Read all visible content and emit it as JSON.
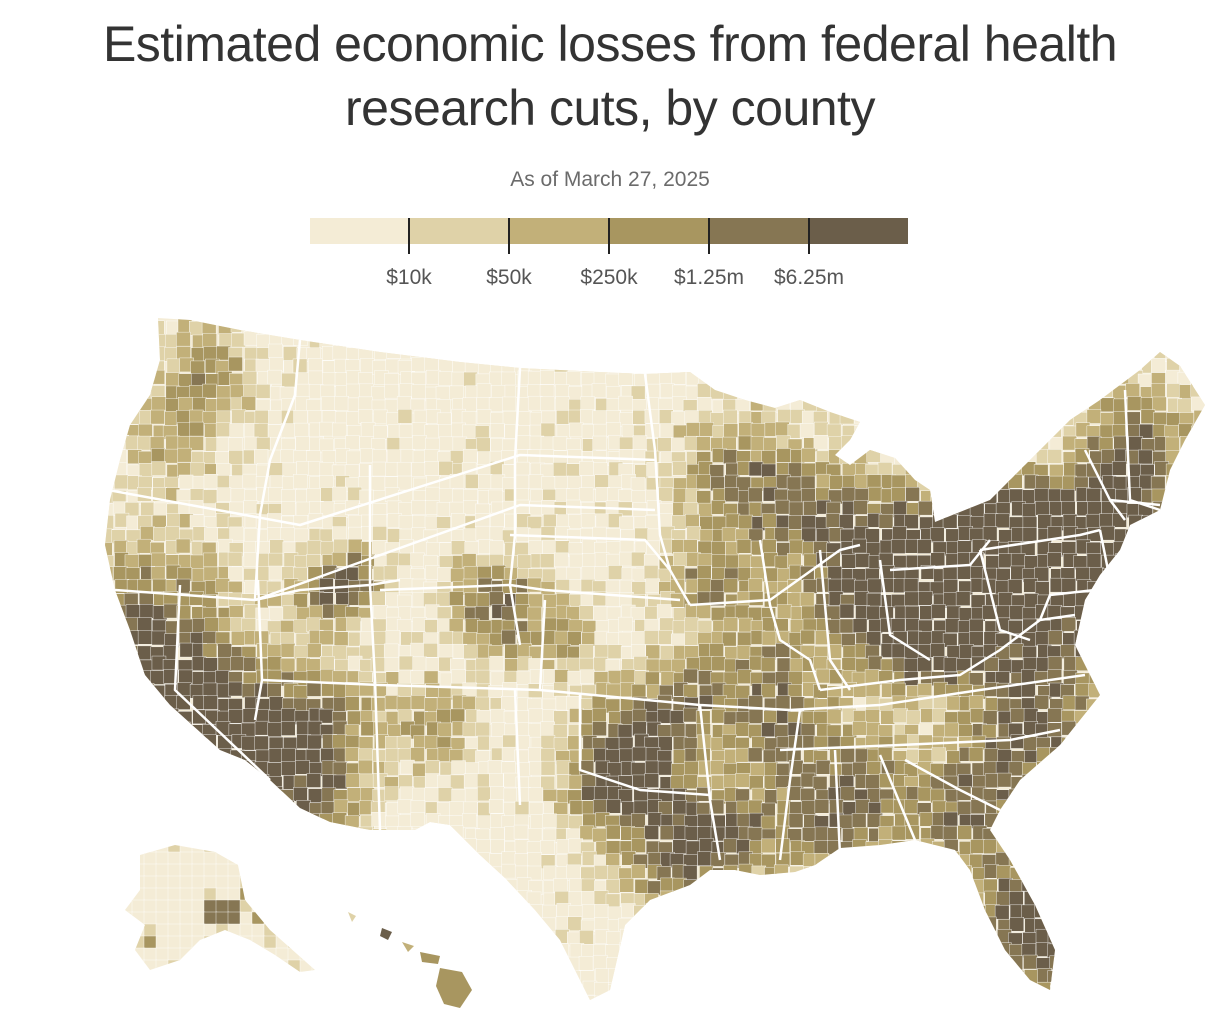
{
  "header": {
    "title_line1": "Estimated economic losses from federal health",
    "title_line2": "research cuts, by county",
    "subtitle": "As of March 27, 2025"
  },
  "legend": {
    "colors": [
      "#f4ecd6",
      "#dfd2a8",
      "#c2b079",
      "#a89660",
      "#867653",
      "#6b5e4a"
    ],
    "labels": [
      "$10k",
      "$50k",
      "$250k",
      "$1.25m",
      "$6.25m"
    ]
  },
  "map": {
    "base_color": "#f4ecd6",
    "border_color": "#ffffff"
  }
}
